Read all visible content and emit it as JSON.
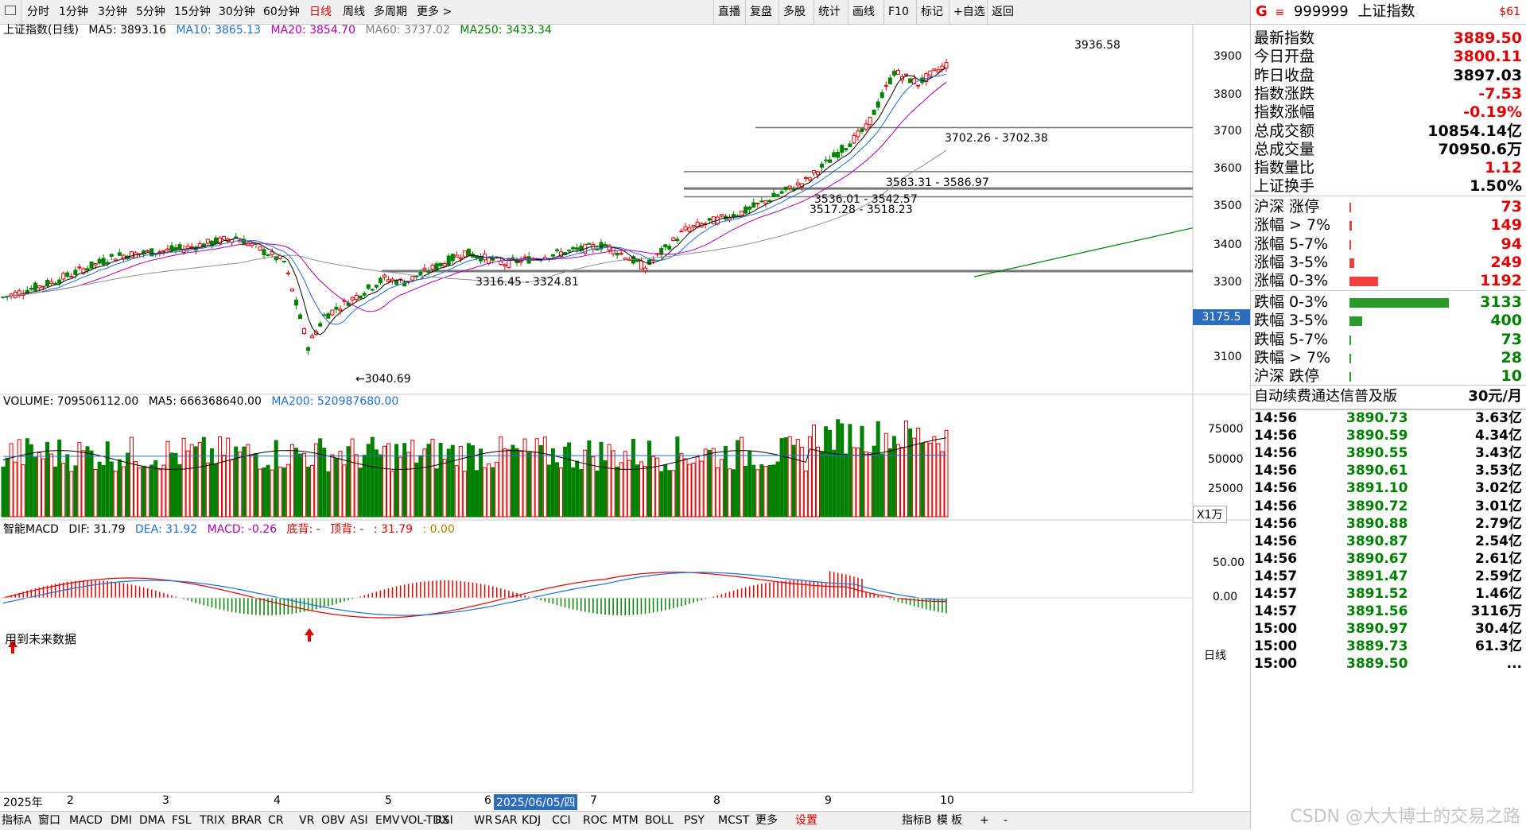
{
  "toolbar": {
    "periods": [
      "分时",
      "1分钟",
      "3分钟",
      "5分钟",
      "15分钟",
      "30分钟",
      "60分钟",
      "日线",
      "周线",
      "多周期",
      "更多 >"
    ],
    "active_period": "日线",
    "right_items": [
      "直播",
      "复盘",
      "多股",
      "统计",
      "画线",
      "F10",
      "标记",
      "+自选",
      "返回"
    ]
  },
  "main_legend": {
    "name": "上证指数(日线)",
    "ma5": "MA5: 3893.16",
    "ma10": "MA10: 3865.13",
    "ma20": "MA20: 3854.70",
    "ma60": "MA60: 3737.02",
    "ma250": "MA250: 3433.34",
    "colors": {
      "ma5": "#000000",
      "ma10": "#1f6fd6",
      "ma20": "#b000b0",
      "ma60": "#808080",
      "ma250": "#008000"
    }
  },
  "volume_legend": {
    "label": "VOLUME: 709506112.00",
    "ma5": "MA5: 666368640.00",
    "ma200": "MA200: 520987680.00"
  },
  "macd_legend": {
    "name": "智能MACD",
    "dif": "DIF: 31.79",
    "dea": "DEA: 31.92",
    "macd": "MACD: -0.26",
    "bottom_div": "底背: -",
    "top_div": "顶背: -",
    "extra1": ": 31.79",
    "extra2": ": 0.00"
  },
  "annotations": {
    "high": "3936.58",
    "low": "3040.69",
    "range1": "3702.26 - 3702.38",
    "range2": "3583.31 - 3586.97",
    "range3": "3536.01 - 3542.57",
    "range4": "3517.28 - 3518.23",
    "range5": "3316.45 - 3324.81",
    "future_data": "用到未来数据",
    "current_price_tag": "3175.5",
    "volume_unit": "X1万",
    "period_tag": "日线"
  },
  "price_axis": [
    "3900",
    "3800",
    "3700",
    "3600",
    "3500",
    "3400",
    "3300",
    "3100"
  ],
  "volume_axis": [
    "75000",
    "50000",
    "25000"
  ],
  "macd_axis": [
    "50.00",
    "0.00"
  ],
  "date_axis": [
    "2025年",
    "2",
    "3",
    "4",
    "5",
    "6",
    "2025/06/05/四",
    "7",
    "8",
    "9",
    "10"
  ],
  "bottom_tabs": [
    "指标A",
    "窗口",
    "MACD",
    "DMI",
    "DMA",
    "FSL",
    "TRIX",
    "BRAR",
    "CR",
    "VR",
    "OBV",
    "ASI",
    "EMV",
    "VOL-TDX",
    "RSI",
    "WR",
    "SAR",
    "KDJ",
    "CCI",
    "ROC",
    "MTM",
    "BOLL",
    "PSY",
    "MCST",
    "更多",
    "设置"
  ],
  "bottom_right": [
    "指标B",
    "模",
    "板",
    "+",
    "-"
  ],
  "quote_panel": {
    "flag": "G",
    "code": "999999",
    "name": "上证指数",
    "pay": "$61",
    "rows": [
      {
        "label": "最新指数",
        "value": "3889.50",
        "color": "red"
      },
      {
        "label": "今日开盘",
        "value": "3800.11",
        "color": "red"
      },
      {
        "label": "昨日收盘",
        "value": "3897.03",
        "color": "black"
      },
      {
        "label": "指数涨跌",
        "value": "-7.53",
        "color": "red"
      },
      {
        "label": "指数涨幅",
        "value": "-0.19%",
        "color": "red"
      },
      {
        "label": "总成交额",
        "value": "10854.14亿",
        "color": "black"
      },
      {
        "label": "总成交量",
        "value": "70950.6万",
        "color": "black"
      },
      {
        "label": "指数量比",
        "value": "1.12",
        "color": "red"
      },
      {
        "label": "上证换手",
        "value": "1.50%",
        "color": "black"
      }
    ],
    "up_stats": [
      {
        "label": "沪深 涨停",
        "value": "73",
        "bar": 0.01
      },
      {
        "label": "涨幅 > 7%",
        "value": "149",
        "bar": 0.03
      },
      {
        "label": "涨幅 5-7%",
        "value": "94",
        "bar": 0.02
      },
      {
        "label": "涨幅 3-5%",
        "value": "249",
        "bar": 0.06
      },
      {
        "label": "涨幅 0-3%",
        "value": "1192",
        "bar": 0.36
      }
    ],
    "down_stats": [
      {
        "label": "跌幅 0-3%",
        "value": "3133",
        "bar": 1.0
      },
      {
        "label": "跌幅 3-5%",
        "value": "400",
        "bar": 0.13
      },
      {
        "label": "跌幅 5-7%",
        "value": "73",
        "bar": 0.01
      },
      {
        "label": "跌幅 > 7%",
        "value": "28",
        "bar": 0.01
      },
      {
        "label": "沪深 跌停",
        "value": "10",
        "bar": 0.01
      }
    ],
    "service": "自动续费通达信普及版",
    "price": "30元/月",
    "ticks": [
      {
        "time": "14:56",
        "price": "3890.73",
        "amount": "3.63亿"
      },
      {
        "time": "14:56",
        "price": "3890.59",
        "amount": "4.34亿"
      },
      {
        "time": "14:56",
        "price": "3890.55",
        "amount": "3.43亿"
      },
      {
        "time": "14:56",
        "price": "3890.61",
        "amount": "3.53亿"
      },
      {
        "time": "14:56",
        "price": "3891.10",
        "amount": "3.02亿"
      },
      {
        "time": "14:56",
        "price": "3890.72",
        "amount": "3.01亿"
      },
      {
        "time": "14:56",
        "price": "3890.88",
        "amount": "2.79亿"
      },
      {
        "time": "14:56",
        "price": "3890.87",
        "amount": "2.54亿"
      },
      {
        "time": "14:56",
        "price": "3890.67",
        "amount": "2.61亿"
      },
      {
        "time": "14:57",
        "price": "3891.47",
        "amount": "2.59亿"
      },
      {
        "time": "14:57",
        "price": "3891.52",
        "amount": "1.46亿"
      },
      {
        "time": "14:57",
        "price": "3891.56",
        "amount": "3116万"
      },
      {
        "time": "15:00",
        "price": "3890.97",
        "amount": "30.4亿"
      },
      {
        "time": "15:00",
        "price": "3889.73",
        "amount": "61.3亿"
      },
      {
        "time": "15:00",
        "price": "3889.50",
        "amount": "..."
      }
    ]
  },
  "watermark": "CSDN @大大博士的交易之路"
}
